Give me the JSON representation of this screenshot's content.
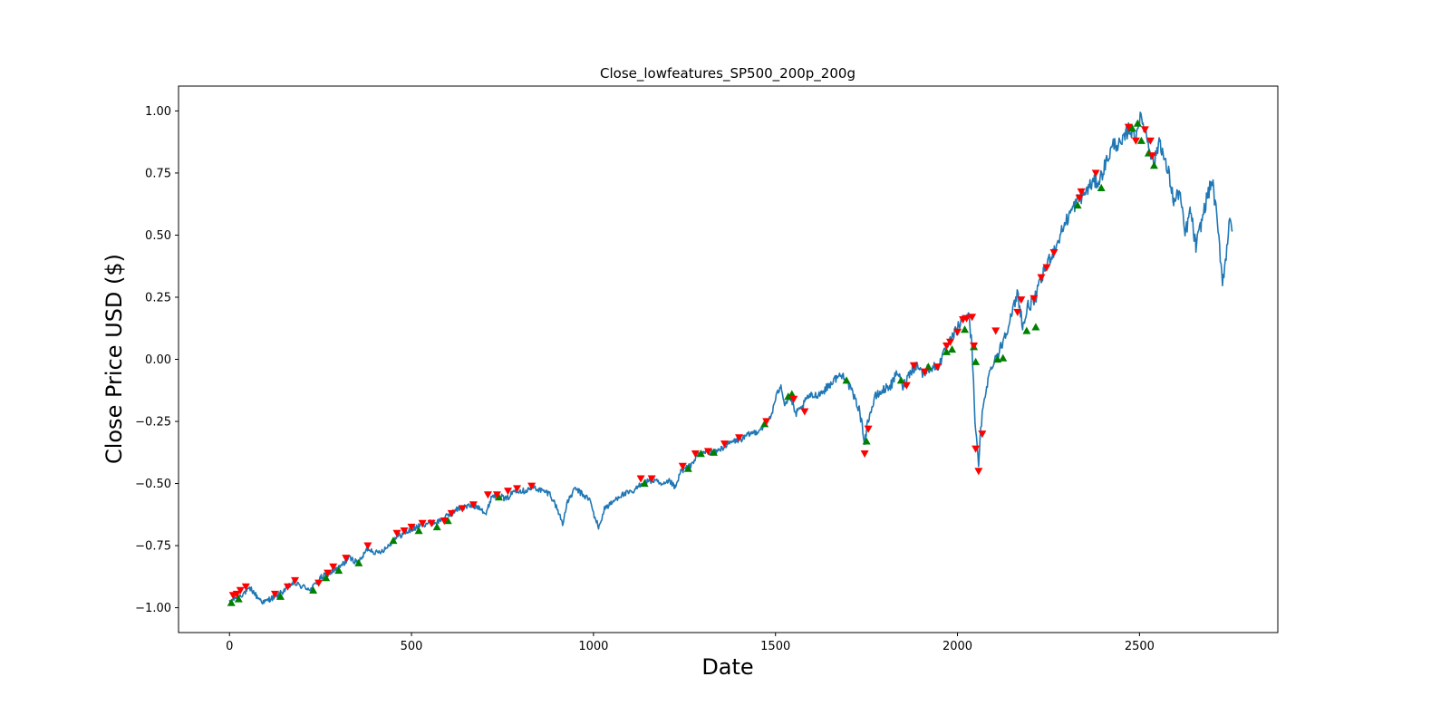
{
  "colors": {
    "line": "#1f77b4",
    "buy_marker": "#008000",
    "sell_marker": "#ff0000",
    "axes": "#000000",
    "background": "#ffffff"
  },
  "chart_data": {
    "type": "line",
    "title": "Close_lowfeatures_SP500_200p_200g",
    "xlabel": "Date",
    "ylabel": "Close Price USD ($)",
    "xlim": [
      -140,
      2880
    ],
    "ylim": [
      -1.1,
      1.1
    ],
    "xticks": [
      0,
      500,
      1000,
      1500,
      2000,
      2500
    ],
    "xtick_labels": [
      "0",
      "500",
      "1000",
      "1500",
      "2000",
      "2500"
    ],
    "yticks": [
      1.0,
      0.75,
      0.5,
      0.25,
      0.0,
      -0.25,
      -0.5,
      -0.75,
      -1.0
    ],
    "ytick_labels": [
      "1.00",
      "0.75",
      "0.50",
      "0.25",
      "0.00",
      "−0.25",
      "−0.50",
      "−0.75",
      "−1.00"
    ],
    "grid": false,
    "series": [
      {
        "kind": "line",
        "anchors": [
          [
            0,
            -0.98
          ],
          [
            15,
            -0.96
          ],
          [
            30,
            -0.95
          ],
          [
            45,
            -0.935
          ],
          [
            60,
            -0.925
          ],
          [
            75,
            -0.955
          ],
          [
            95,
            -0.98
          ],
          [
            110,
            -0.965
          ],
          [
            130,
            -0.955
          ],
          [
            150,
            -0.93
          ],
          [
            175,
            -0.9
          ],
          [
            200,
            -0.915
          ],
          [
            225,
            -0.925
          ],
          [
            250,
            -0.88
          ],
          [
            275,
            -0.86
          ],
          [
            300,
            -0.84
          ],
          [
            330,
            -0.8
          ],
          [
            355,
            -0.82
          ],
          [
            380,
            -0.76
          ],
          [
            405,
            -0.78
          ],
          [
            430,
            -0.76
          ],
          [
            455,
            -0.72
          ],
          [
            480,
            -0.7
          ],
          [
            510,
            -0.68
          ],
          [
            540,
            -0.66
          ],
          [
            570,
            -0.655
          ],
          [
            600,
            -0.63
          ],
          [
            630,
            -0.6
          ],
          [
            660,
            -0.59
          ],
          [
            690,
            -0.595
          ],
          [
            705,
            -0.625
          ],
          [
            720,
            -0.55
          ],
          [
            740,
            -0.545
          ],
          [
            760,
            -0.565
          ],
          [
            785,
            -0.525
          ],
          [
            810,
            -0.53
          ],
          [
            835,
            -0.515
          ],
          [
            860,
            -0.53
          ],
          [
            880,
            -0.54
          ],
          [
            900,
            -0.6
          ],
          [
            915,
            -0.66
          ],
          [
            930,
            -0.57
          ],
          [
            950,
            -0.52
          ],
          [
            975,
            -0.55
          ],
          [
            990,
            -0.565
          ],
          [
            1000,
            -0.62
          ],
          [
            1015,
            -0.68
          ],
          [
            1030,
            -0.6
          ],
          [
            1050,
            -0.58
          ],
          [
            1070,
            -0.55
          ],
          [
            1090,
            -0.54
          ],
          [
            1110,
            -0.535
          ],
          [
            1130,
            -0.5
          ],
          [
            1150,
            -0.49
          ],
          [
            1170,
            -0.49
          ],
          [
            1190,
            -0.51
          ],
          [
            1210,
            -0.49
          ],
          [
            1225,
            -0.52
          ],
          [
            1240,
            -0.45
          ],
          [
            1265,
            -0.43
          ],
          [
            1285,
            -0.39
          ],
          [
            1310,
            -0.37
          ],
          [
            1335,
            -0.375
          ],
          [
            1360,
            -0.35
          ],
          [
            1385,
            -0.33
          ],
          [
            1410,
            -0.32
          ],
          [
            1430,
            -0.3
          ],
          [
            1450,
            -0.29
          ],
          [
            1470,
            -0.265
          ],
          [
            1490,
            -0.22
          ],
          [
            1500,
            -0.16
          ],
          [
            1515,
            -0.1
          ],
          [
            1525,
            -0.18
          ],
          [
            1540,
            -0.15
          ],
          [
            1555,
            -0.22
          ],
          [
            1570,
            -0.2
          ],
          [
            1590,
            -0.15
          ],
          [
            1610,
            -0.145
          ],
          [
            1630,
            -0.13
          ],
          [
            1650,
            -0.1
          ],
          [
            1670,
            -0.07
          ],
          [
            1690,
            -0.065
          ],
          [
            1700,
            -0.1
          ],
          [
            1715,
            -0.15
          ],
          [
            1730,
            -0.2
          ],
          [
            1745,
            -0.33
          ],
          [
            1755,
            -0.24
          ],
          [
            1775,
            -0.15
          ],
          [
            1800,
            -0.12
          ],
          [
            1820,
            -0.1
          ],
          [
            1835,
            -0.05
          ],
          [
            1850,
            -0.11
          ],
          [
            1870,
            -0.05
          ],
          [
            1890,
            -0.02
          ],
          [
            1905,
            -0.06
          ],
          [
            1920,
            -0.035
          ],
          [
            1945,
            -0.03
          ],
          [
            1970,
            0.04
          ],
          [
            1990,
            0.1
          ],
          [
            2010,
            0.15
          ],
          [
            2030,
            0.19
          ],
          [
            2040,
            0.05
          ],
          [
            2050,
            -0.3
          ],
          [
            2058,
            -0.42
          ],
          [
            2066,
            -0.25
          ],
          [
            2080,
            -0.1
          ],
          [
            2100,
            0.0
          ],
          [
            2115,
            0.03
          ],
          [
            2130,
            0.1
          ],
          [
            2150,
            0.18
          ],
          [
            2165,
            0.27
          ],
          [
            2180,
            0.13
          ],
          [
            2195,
            0.22
          ],
          [
            2210,
            0.23
          ],
          [
            2230,
            0.32
          ],
          [
            2250,
            0.4
          ],
          [
            2270,
            0.45
          ],
          [
            2290,
            0.53
          ],
          [
            2310,
            0.59
          ],
          [
            2330,
            0.64
          ],
          [
            2350,
            0.67
          ],
          [
            2370,
            0.71
          ],
          [
            2390,
            0.72
          ],
          [
            2410,
            0.8
          ],
          [
            2430,
            0.87
          ],
          [
            2450,
            0.86
          ],
          [
            2470,
            0.93
          ],
          [
            2490,
            0.9
          ],
          [
            2500,
            0.97
          ],
          [
            2510,
            0.95
          ],
          [
            2525,
            0.87
          ],
          [
            2540,
            0.78
          ],
          [
            2555,
            0.89
          ],
          [
            2570,
            0.79
          ],
          [
            2580,
            0.75
          ],
          [
            2595,
            0.63
          ],
          [
            2610,
            0.68
          ],
          [
            2625,
            0.5
          ],
          [
            2640,
            0.6
          ],
          [
            2655,
            0.45
          ],
          [
            2670,
            0.55
          ],
          [
            2685,
            0.65
          ],
          [
            2700,
            0.72
          ],
          [
            2710,
            0.6
          ],
          [
            2720,
            0.45
          ],
          [
            2728,
            0.32
          ],
          [
            2738,
            0.41
          ],
          [
            2748,
            0.59
          ],
          [
            2755,
            0.52
          ]
        ]
      },
      {
        "kind": "scatter",
        "marker": "triangle-up",
        "name_hidden": true,
        "points": [
          [
            5,
            -0.98
          ],
          [
            25,
            -0.965
          ],
          [
            140,
            -0.955
          ],
          [
            230,
            -0.93
          ],
          [
            265,
            -0.88
          ],
          [
            300,
            -0.85
          ],
          [
            355,
            -0.82
          ],
          [
            450,
            -0.73
          ],
          [
            520,
            -0.69
          ],
          [
            570,
            -0.675
          ],
          [
            600,
            -0.65
          ],
          [
            740,
            -0.555
          ],
          [
            1140,
            -0.5
          ],
          [
            1260,
            -0.44
          ],
          [
            1295,
            -0.38
          ],
          [
            1330,
            -0.375
          ],
          [
            1470,
            -0.26
          ],
          [
            1535,
            -0.15
          ],
          [
            1545,
            -0.14
          ],
          [
            1695,
            -0.085
          ],
          [
            1750,
            -0.33
          ],
          [
            1845,
            -0.085
          ],
          [
            1920,
            -0.03
          ],
          [
            1970,
            0.03
          ],
          [
            1985,
            0.04
          ],
          [
            2020,
            0.12
          ],
          [
            2045,
            0.05
          ],
          [
            2050,
            -0.01
          ],
          [
            2110,
            0.0
          ],
          [
            2125,
            0.005
          ],
          [
            2190,
            0.115
          ],
          [
            2215,
            0.13
          ],
          [
            2330,
            0.62
          ],
          [
            2395,
            0.69
          ],
          [
            2480,
            0.93
          ],
          [
            2495,
            0.95
          ],
          [
            2505,
            0.88
          ],
          [
            2525,
            0.83
          ],
          [
            2540,
            0.78
          ]
        ]
      },
      {
        "kind": "scatter",
        "marker": "triangle-down",
        "name_hidden": true,
        "points": [
          [
            10,
            -0.95
          ],
          [
            20,
            -0.945
          ],
          [
            30,
            -0.93
          ],
          [
            45,
            -0.915
          ],
          [
            125,
            -0.945
          ],
          [
            160,
            -0.915
          ],
          [
            180,
            -0.89
          ],
          [
            245,
            -0.9
          ],
          [
            270,
            -0.86
          ],
          [
            285,
            -0.835
          ],
          [
            320,
            -0.8
          ],
          [
            380,
            -0.75
          ],
          [
            460,
            -0.7
          ],
          [
            480,
            -0.69
          ],
          [
            500,
            -0.675
          ],
          [
            530,
            -0.66
          ],
          [
            555,
            -0.66
          ],
          [
            590,
            -0.65
          ],
          [
            610,
            -0.62
          ],
          [
            640,
            -0.6
          ],
          [
            670,
            -0.585
          ],
          [
            710,
            -0.545
          ],
          [
            735,
            -0.545
          ],
          [
            765,
            -0.53
          ],
          [
            790,
            -0.52
          ],
          [
            830,
            -0.51
          ],
          [
            1130,
            -0.48
          ],
          [
            1160,
            -0.48
          ],
          [
            1245,
            -0.43
          ],
          [
            1280,
            -0.38
          ],
          [
            1315,
            -0.37
          ],
          [
            1360,
            -0.34
          ],
          [
            1400,
            -0.315
          ],
          [
            1475,
            -0.25
          ],
          [
            1550,
            -0.16
          ],
          [
            1580,
            -0.21
          ],
          [
            1745,
            -0.38
          ],
          [
            1755,
            -0.28
          ],
          [
            1860,
            -0.105
          ],
          [
            1880,
            -0.025
          ],
          [
            1910,
            -0.05
          ],
          [
            1945,
            -0.03
          ],
          [
            1970,
            0.055
          ],
          [
            1980,
            0.07
          ],
          [
            2000,
            0.11
          ],
          [
            2015,
            0.16
          ],
          [
            2025,
            0.165
          ],
          [
            2040,
            0.17
          ],
          [
            2045,
            0.055
          ],
          [
            2050,
            -0.36
          ],
          [
            2058,
            -0.45
          ],
          [
            2068,
            -0.3
          ],
          [
            2105,
            0.115
          ],
          [
            2165,
            0.19
          ],
          [
            2175,
            0.24
          ],
          [
            2210,
            0.245
          ],
          [
            2230,
            0.33
          ],
          [
            2245,
            0.37
          ],
          [
            2265,
            0.43
          ],
          [
            2335,
            0.65
          ],
          [
            2340,
            0.675
          ],
          [
            2380,
            0.75
          ],
          [
            2470,
            0.935
          ],
          [
            2490,
            0.88
          ],
          [
            2515,
            0.925
          ],
          [
            2530,
            0.88
          ],
          [
            2535,
            0.82
          ]
        ]
      }
    ]
  }
}
